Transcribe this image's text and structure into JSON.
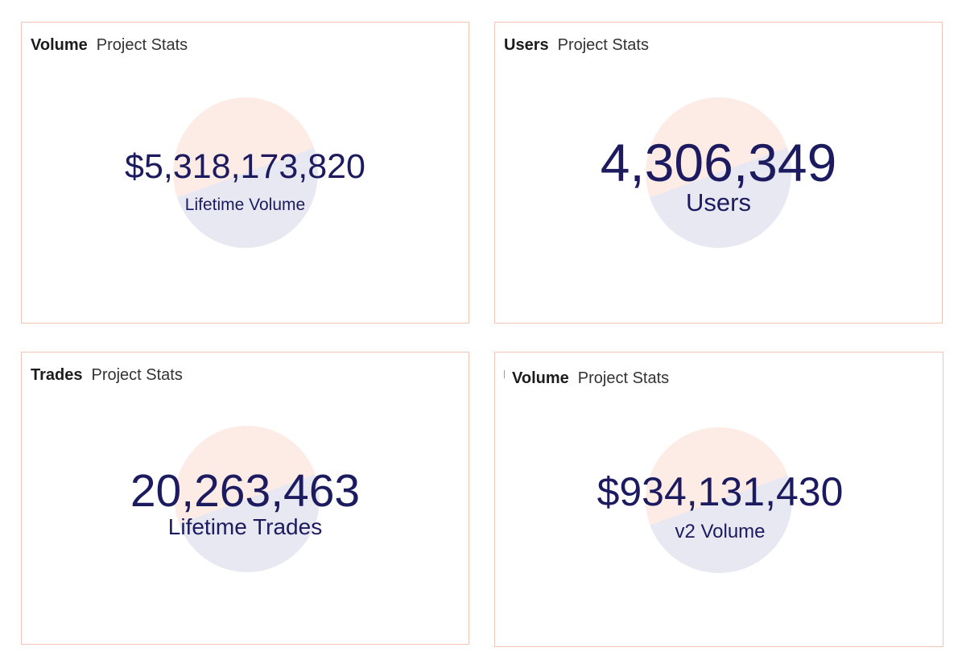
{
  "cards": [
    {
      "category": "Volume",
      "source": "Project Stats",
      "value": "$5,318,173,820",
      "label": "Lifetime Volume"
    },
    {
      "category": "Users",
      "source": "Project Stats",
      "value": "4,306,349",
      "label": "Users"
    },
    {
      "category": "Trades",
      "source": "Project Stats",
      "value": "20,263,463",
      "label": "Lifetime Trades"
    },
    {
      "category": "Volume",
      "source": "Project Stats",
      "value": "$934,131,430",
      "label": "v2 Volume"
    }
  ],
  "colors": {
    "card_border": "#f3c6b9",
    "value_text": "#1d1b5f",
    "circle_top": "#fdebe6",
    "circle_bottom": "#e7e8f1"
  }
}
